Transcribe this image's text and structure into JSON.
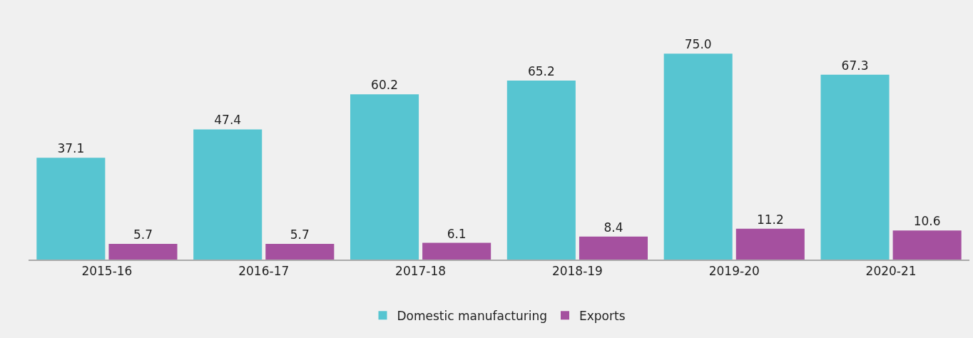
{
  "chart_data": {
    "type": "bar",
    "categories": [
      "2015-16",
      "2016-17",
      "2017-18",
      "2018-19",
      "2019-20",
      "2020-21"
    ],
    "series": [
      {
        "name": "Domestic manufacturing",
        "color": "#57c5d1",
        "values": [
          37.1,
          47.4,
          60.2,
          65.2,
          75.0,
          67.3
        ],
        "value_labels": [
          "37.1",
          "47.4",
          "60.2",
          "65.2",
          "75.0",
          "67.3"
        ]
      },
      {
        "name": "Exports",
        "color": "#a5509f",
        "values": [
          5.7,
          5.7,
          6.1,
          8.4,
          11.2,
          10.6
        ],
        "value_labels": [
          "5.7",
          "5.7",
          "6.1",
          "8.4",
          "11.2",
          "10.6"
        ]
      }
    ],
    "legend": "bottom"
  }
}
